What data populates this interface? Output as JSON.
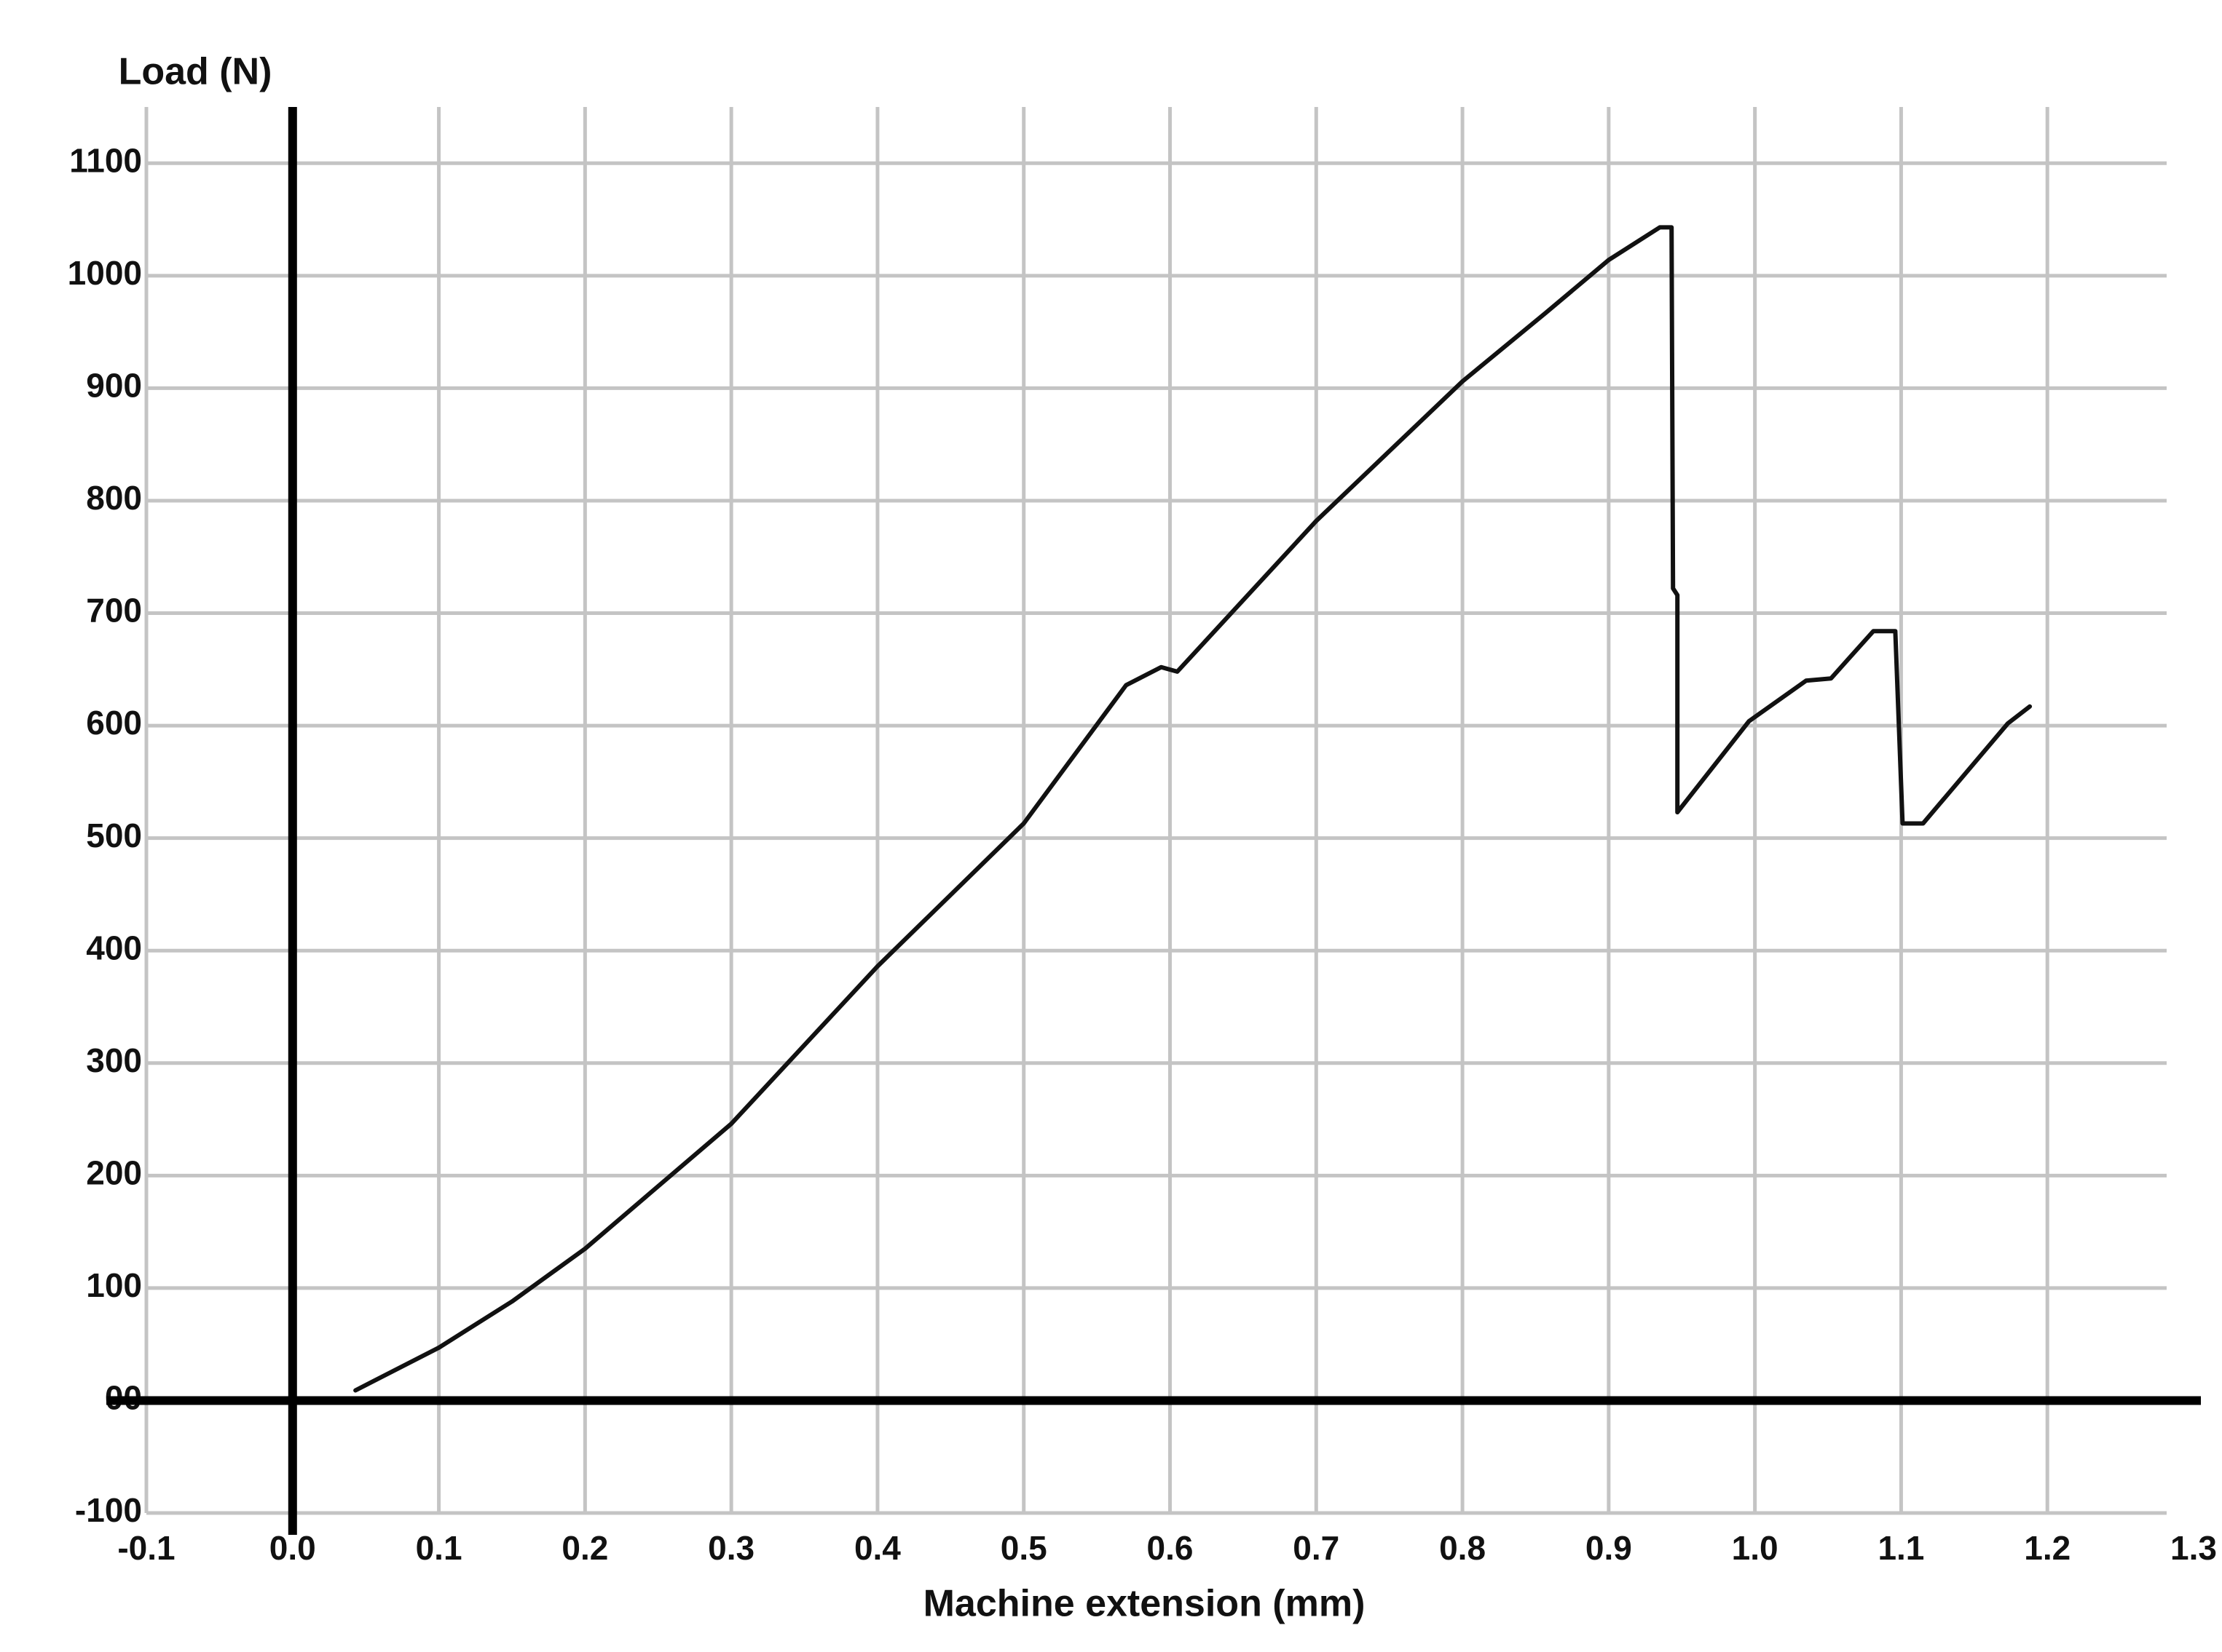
{
  "chart_data": {
    "type": "line",
    "x_label": "Machine extension (mm)",
    "y_label": "Load (N)",
    "xlim": [
      -0.1,
      1.3
    ],
    "ylim": [
      -100,
      1150
    ],
    "xticks": [
      -0.1,
      {
        "value": 0,
        "label": "0.0"
      },
      0.1,
      0.2,
      0.3,
      0.4,
      0.5,
      0.6,
      0.7,
      0.8,
      0.9,
      {
        "value": 1,
        "label": "1.0"
      },
      1.1,
      1.2,
      1.3
    ],
    "yticks": [
      -100,
      {
        "value": 0,
        "label": "00"
      },
      100,
      200,
      300,
      400,
      500,
      600,
      700,
      800,
      900,
      1000,
      1100
    ],
    "grid": true,
    "series": [
      {
        "color": "#111111",
        "x": [
          0.043,
          0.1,
          0.15,
          0.2,
          0.3,
          0.4,
          0.5,
          0.57,
          0.594,
          0.605,
          0.7,
          0.8,
          0.857,
          0.9,
          0.935,
          0.943,
          0.944,
          0.947,
          0.947,
          0.996,
          1.035,
          1.052,
          1.081,
          1.096,
          1.101,
          1.115,
          1.173,
          1.188
        ],
        "values": [
          9,
          47,
          88,
          135,
          246,
          386,
          513,
          636,
          652,
          648,
          782,
          906,
          967,
          1014,
          1043,
          1043,
          722,
          716,
          523,
          604,
          640,
          642,
          684,
          684,
          513,
          513,
          602,
          617
        ]
      }
    ]
  }
}
